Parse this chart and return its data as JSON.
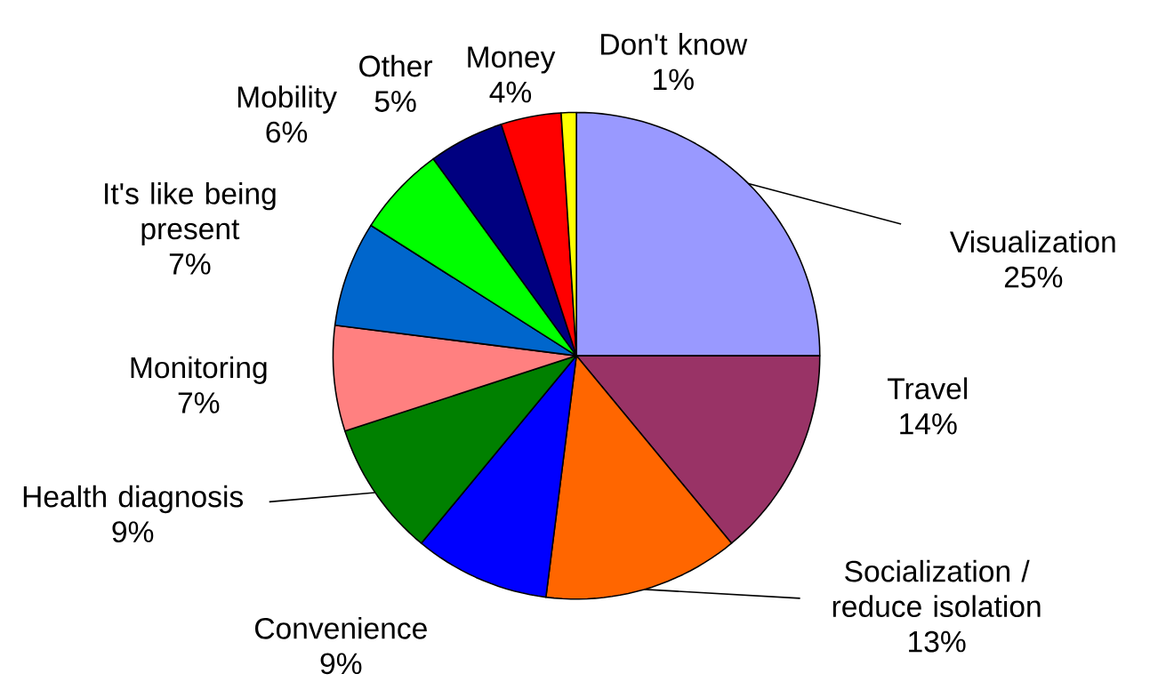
{
  "chart_data": {
    "type": "pie",
    "categories": [
      "Visualization",
      "Travel",
      "Socialization / reduce isolation",
      "Convenience",
      "Health diagnosis",
      "Monitoring",
      "It's like being present",
      "Mobility",
      "Other",
      "Money",
      "Don't know"
    ],
    "values": [
      25,
      14,
      13,
      9,
      9,
      7,
      7,
      6,
      5,
      4,
      1
    ],
    "value_labels": [
      "25%",
      "14%",
      "13%",
      "9%",
      "9%",
      "7%",
      "7%",
      "6%",
      "5%",
      "4%",
      "1%"
    ],
    "colors": [
      "#9999ff",
      "#993366",
      "#ff6600",
      "#0000ff",
      "#008000",
      "#ff8080",
      "#0066cc",
      "#00ff00",
      "#000080",
      "#ff0000",
      "#ffff00"
    ]
  }
}
